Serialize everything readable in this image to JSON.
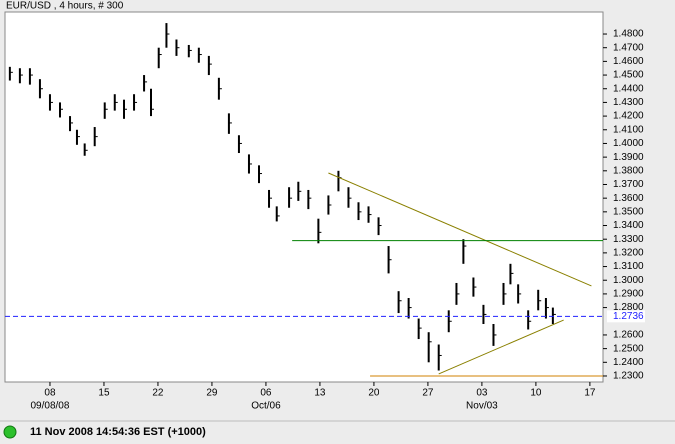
{
  "chart_data": {
    "type": "ohlc",
    "title": "EUR/USD , 4 hours, # 300",
    "status": "11 Nov 2008 14:54:36 EST (+1000)",
    "color": "#000000",
    "xlim": [
      1.17,
      78.7
    ],
    "ylim": [
      1.2256,
      1.4961
    ],
    "xticks": [
      {
        "value": 7,
        "label": "08"
      },
      {
        "value": 14,
        "label": "15"
      },
      {
        "value": 21,
        "label": "22"
      },
      {
        "value": 28,
        "label": "29"
      },
      {
        "value": 35,
        "label": "06"
      },
      {
        "value": 42,
        "label": "13"
      },
      {
        "value": 49,
        "label": "20"
      },
      {
        "value": 56,
        "label": "27"
      },
      {
        "value": 63,
        "label": "03"
      },
      {
        "value": 70,
        "label": "10"
      },
      {
        "value": 77,
        "label": "17"
      }
    ],
    "xticks2": [
      {
        "value": 7,
        "label": "09/08/08"
      },
      {
        "value": 35,
        "label": "Oct/06"
      },
      {
        "value": 63,
        "label": "Nov/03"
      }
    ],
    "yticks": [
      {
        "value": 1.23,
        "label": "1.2300"
      },
      {
        "value": 1.24,
        "label": "1.2400"
      },
      {
        "value": 1.25,
        "label": "1.2500"
      },
      {
        "value": 1.26,
        "label": "1.2600"
      },
      {
        "value": 1.28,
        "label": "1.2800"
      },
      {
        "value": 1.29,
        "label": "1.2900"
      },
      {
        "value": 1.3,
        "label": "1.3000"
      },
      {
        "value": 1.31,
        "label": "1.3100"
      },
      {
        "value": 1.32,
        "label": "1.3200"
      },
      {
        "value": 1.33,
        "label": "1.3300"
      },
      {
        "value": 1.34,
        "label": "1.3400"
      },
      {
        "value": 1.35,
        "label": "1.3500"
      },
      {
        "value": 1.36,
        "label": "1.3600"
      },
      {
        "value": 1.37,
        "label": "1.3700"
      },
      {
        "value": 1.38,
        "label": "1.3800"
      },
      {
        "value": 1.39,
        "label": "1.3900"
      },
      {
        "value": 1.4,
        "label": "1.4000"
      },
      {
        "value": 1.41,
        "label": "1.4100"
      },
      {
        "value": 1.42,
        "label": "1.4200"
      },
      {
        "value": 1.43,
        "label": "1.4300"
      },
      {
        "value": 1.44,
        "label": "1.4400"
      },
      {
        "value": 1.45,
        "label": "1.4500"
      },
      {
        "value": 1.46,
        "label": "1.4600"
      },
      {
        "value": 1.47,
        "label": "1.4700"
      },
      {
        "value": 1.48,
        "label": "1.4800"
      }
    ],
    "x": [
      1.8,
      3.1,
      4.4,
      5.7,
      7,
      8.3,
      9.6,
      10.5,
      11.5,
      12.8,
      14.1,
      15.4,
      16.6,
      17.9,
      19.2,
      20.1,
      21.1,
      22.1,
      23.4,
      25,
      26.3,
      27.6,
      28.9,
      30.2,
      31.5,
      32.8,
      34.1,
      35.4,
      36.4,
      38,
      39.2,
      40.5,
      41.8,
      43.1,
      44.4,
      45.7,
      47,
      48.3,
      49.6,
      50.9,
      52.2,
      53.5,
      54.8,
      56.1,
      57.4,
      58.7,
      59.7,
      60.6,
      61.9,
      63.2,
      64.5,
      65.8,
      66.7,
      67.7,
      69,
      70.3,
      71.3,
      72.2
    ],
    "high": [
      1.456,
      1.455,
      1.455,
      1.447,
      1.436,
      1.43,
      1.42,
      1.41,
      1.4,
      1.412,
      1.43,
      1.436,
      1.432,
      1.436,
      1.45,
      1.44,
      1.47,
      1.488,
      1.476,
      1.472,
      1.47,
      1.464,
      1.448,
      1.422,
      1.406,
      1.392,
      1.384,
      1.366,
      1.354,
      1.368,
      1.372,
      1.366,
      1.345,
      1.362,
      1.38,
      1.368,
      1.357,
      1.354,
      1.346,
      1.325,
      1.292,
      1.287,
      1.272,
      1.262,
      1.253,
      1.278,
      1.298,
      1.33,
      1.302,
      1.282,
      1.268,
      1.298,
      1.312,
      1.297,
      1.278,
      1.293,
      1.287,
      1.28
    ],
    "low": [
      1.446,
      1.444,
      1.443,
      1.433,
      1.424,
      1.419,
      1.409,
      1.399,
      1.391,
      1.398,
      1.418,
      1.424,
      1.418,
      1.424,
      1.438,
      1.42,
      1.455,
      1.47,
      1.464,
      1.463,
      1.459,
      1.45,
      1.432,
      1.407,
      1.393,
      1.378,
      1.371,
      1.353,
      1.343,
      1.353,
      1.358,
      1.352,
      1.327,
      1.348,
      1.365,
      1.353,
      1.344,
      1.342,
      1.333,
      1.305,
      1.276,
      1.272,
      1.257,
      1.24,
      1.234,
      1.262,
      1.282,
      1.312,
      1.288,
      1.268,
      1.252,
      1.282,
      1.297,
      1.283,
      1.264,
      1.278,
      1.272,
      1.268
    ],
    "close": [
      1.452,
      1.45,
      1.45,
      1.44,
      1.43,
      1.425,
      1.415,
      1.405,
      1.395,
      1.405,
      1.425,
      1.43,
      1.425,
      1.43,
      1.445,
      1.425,
      1.465,
      1.48,
      1.47,
      1.468,
      1.465,
      1.458,
      1.44,
      1.415,
      1.4,
      1.385,
      1.378,
      1.36,
      1.347,
      1.36,
      1.365,
      1.36,
      1.335,
      1.355,
      1.375,
      1.36,
      1.35,
      1.348,
      1.34,
      1.315,
      1.285,
      1.28,
      1.265,
      1.255,
      1.245,
      1.27,
      1.29,
      1.325,
      1.295,
      1.275,
      1.26,
      1.29,
      1.305,
      1.29,
      1.27,
      1.285,
      1.28,
      1.275
    ],
    "lines": [
      {
        "x": [
          43.1,
          77.2
        ],
        "y": [
          1.3784,
          1.2958
        ],
        "color": "#8a8000"
      },
      {
        "x": [
          57.4,
          73.6
        ],
        "y": [
          1.2315,
          1.2709
        ],
        "color": "#8a8000"
      },
      {
        "x": [
          38.4,
          78.7
        ],
        "y": [
          1.329,
          1.329
        ],
        "color": "#008000"
      },
      {
        "x": [
          48.5,
          78.7
        ],
        "y": [
          1.23,
          1.23
        ],
        "color": "#d08000"
      }
    ],
    "level": {
      "value": 1.2736,
      "label": "1.2736",
      "color": "#2020ff"
    }
  }
}
